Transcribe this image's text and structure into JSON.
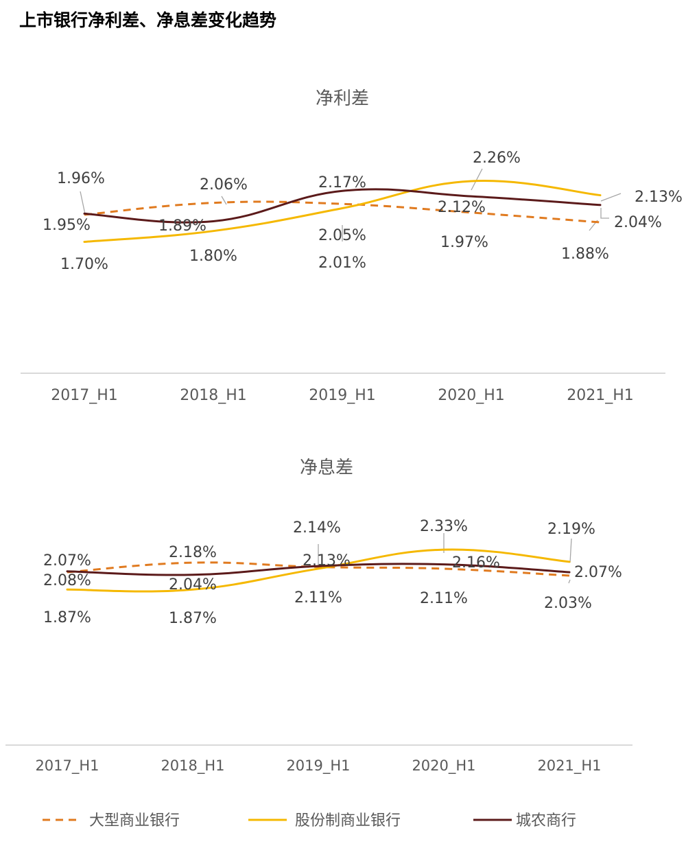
{
  "page": {
    "title": "上市银行净利差、净息差变化趋势"
  },
  "chart_data": [
    {
      "type": "line",
      "title": "净利差",
      "categories": [
        "2017_H1",
        "2018_H1",
        "2019_H1",
        "2020_H1",
        "2021_H1"
      ],
      "series": [
        {
          "key": "large",
          "name": "大型商业银行",
          "color": "#E07A1F",
          "style": "dashed",
          "values": [
            1.95,
            2.06,
            2.05,
            1.97,
            1.88
          ],
          "labels": [
            "1.95%",
            "2.06%",
            "2.05%",
            "1.97%",
            "1.88%"
          ]
        },
        {
          "key": "joint",
          "name": "股份制商业银行",
          "color": "#F5B800",
          "style": "solid",
          "values": [
            1.7,
            1.8,
            2.01,
            2.26,
            2.13
          ],
          "labels": [
            "1.70%",
            "1.80%",
            "2.01%",
            "2.26%",
            "2.13%"
          ]
        },
        {
          "key": "city",
          "name": "城农商行",
          "color": "#5B1A1A",
          "style": "solid",
          "values": [
            1.96,
            1.89,
            2.17,
            2.12,
            2.04
          ],
          "labels": [
            "1.96%",
            "1.89%",
            "2.17%",
            "2.12%",
            "2.04%"
          ]
        }
      ],
      "ylabel": "",
      "xlabel": ""
    },
    {
      "type": "line",
      "title": "净息差",
      "categories": [
        "2017_H1",
        "2018_H1",
        "2019_H1",
        "2020_H1",
        "2021_H1"
      ],
      "series": [
        {
          "key": "large",
          "name": "大型商业银行",
          "color": "#E07A1F",
          "style": "dashed",
          "values": [
            2.07,
            2.18,
            2.13,
            2.11,
            2.03
          ],
          "labels": [
            "2.07%",
            "2.18%",
            "2.13%",
            "2.11%",
            "2.03%"
          ]
        },
        {
          "key": "joint",
          "name": "股份制商业银行",
          "color": "#F5B800",
          "style": "solid",
          "values": [
            1.87,
            1.87,
            2.11,
            2.33,
            2.19
          ],
          "labels": [
            "1.87%",
            "1.87%",
            "2.11%",
            "2.33%",
            "2.19%"
          ]
        },
        {
          "key": "city",
          "name": "城农商行",
          "color": "#5B1A1A",
          "style": "solid",
          "values": [
            2.08,
            2.04,
            2.14,
            2.16,
            2.07
          ],
          "labels": [
            "2.08%",
            "2.04%",
            "2.14%",
            "2.16%",
            "2.07%"
          ]
        }
      ],
      "ylabel": "",
      "xlabel": ""
    }
  ],
  "legend": [
    {
      "key": "large",
      "label": "大型商业银行",
      "color": "#E07A1F",
      "style": "dashed"
    },
    {
      "key": "joint",
      "label": "股份制商业银行",
      "color": "#F5B800",
      "style": "solid"
    },
    {
      "key": "city",
      "label": "城农商行",
      "color": "#5B1A1A",
      "style": "solid"
    }
  ]
}
